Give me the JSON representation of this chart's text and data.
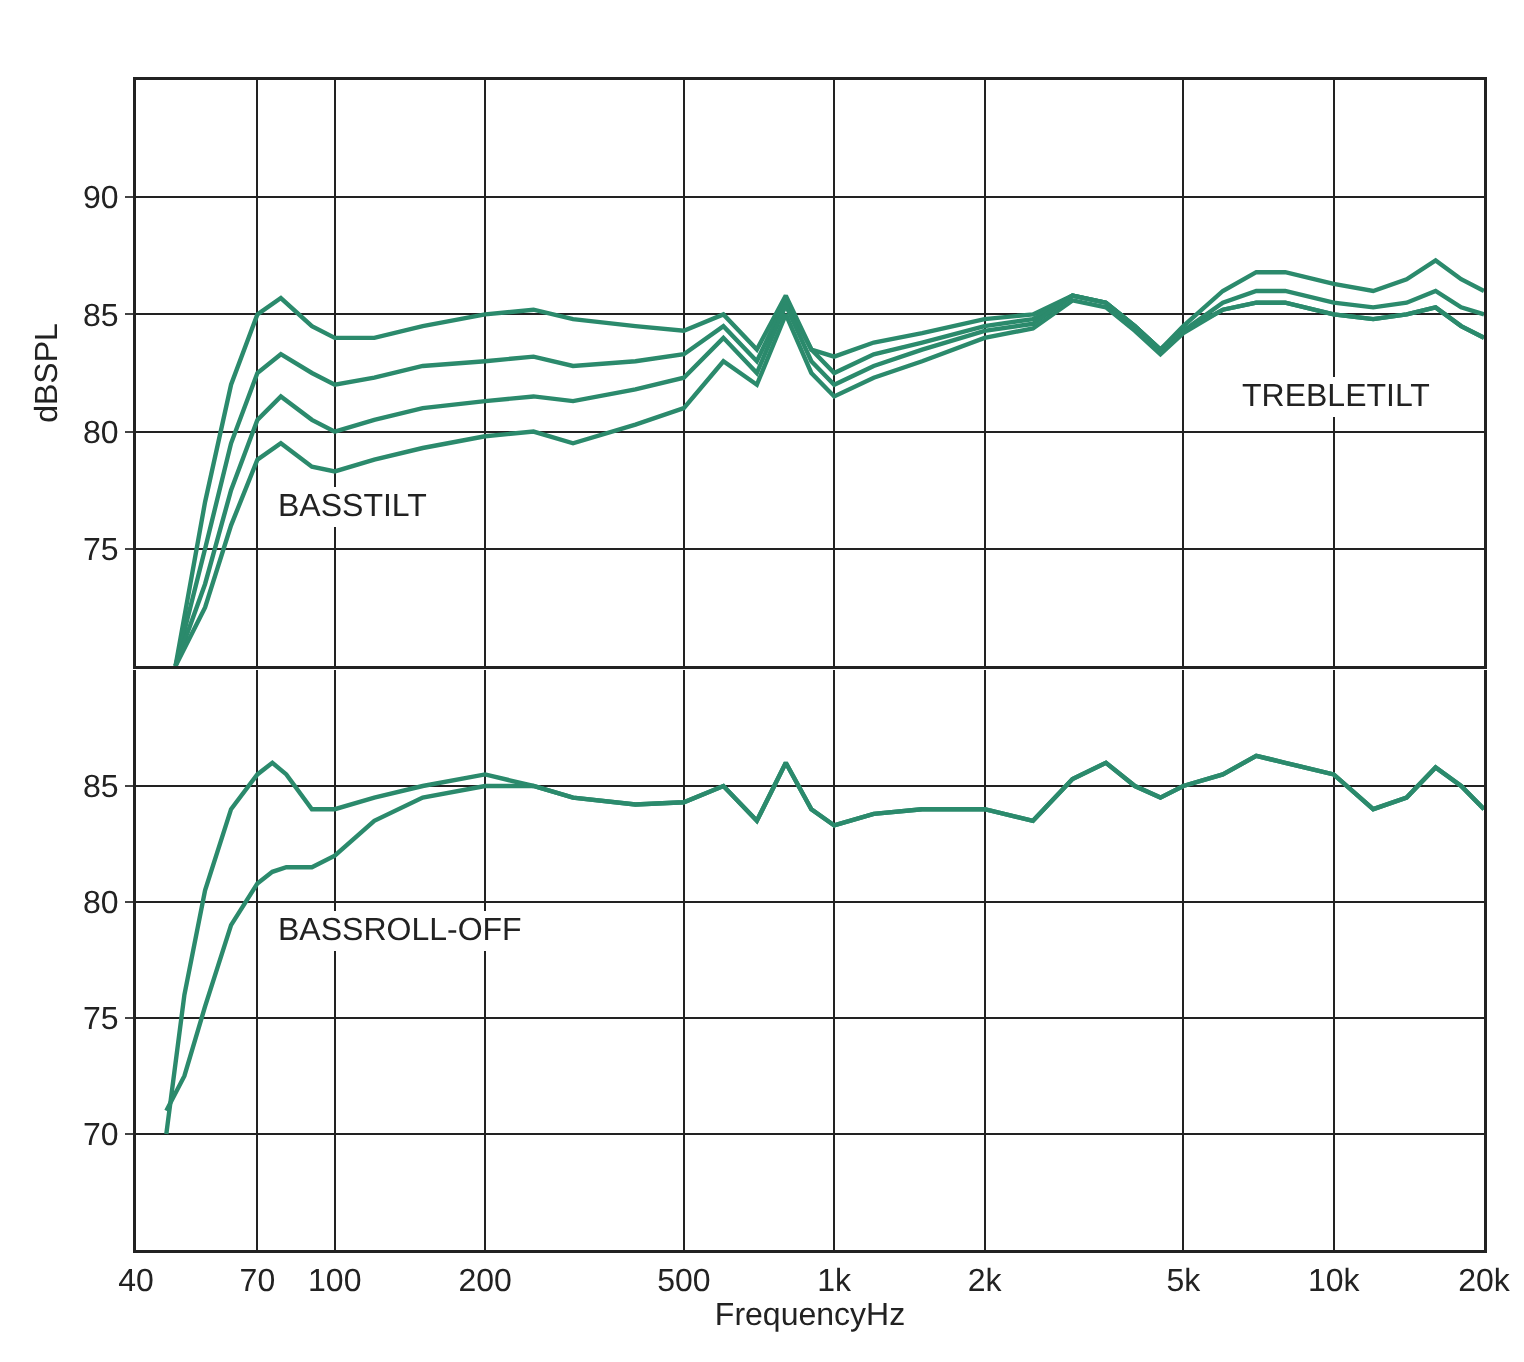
{
  "chart_data": [
    {
      "type": "line",
      "ylabel": "dBSPL",
      "log": "x",
      "grid": true,
      "tick_labels": "y",
      "x": [
        48,
        55,
        62,
        70,
        78,
        90,
        100,
        120,
        150,
        200,
        250,
        300,
        400,
        500,
        600,
        700,
        800,
        900,
        1000,
        1200,
        1500,
        2000,
        2500,
        3000,
        3500,
        4000,
        4500,
        5000,
        6000,
        7000,
        8000,
        10000,
        12000,
        14000,
        16000,
        18000,
        20000
      ],
      "xlim": [
        40,
        20000
      ],
      "xticks": [
        {
          "value": 40,
          "label": null
        },
        {
          "value": 70,
          "label": null
        },
        {
          "value": 100,
          "label": null
        },
        {
          "value": 200,
          "label": null
        },
        {
          "value": 500,
          "label": null
        },
        {
          "value": 1000,
          "label": null
        },
        {
          "value": 2000,
          "label": null
        },
        {
          "value": 5000,
          "label": null
        },
        {
          "value": 10000,
          "label": null
        },
        {
          "value": 20000,
          "label": null
        }
      ],
      "ylim": [
        70,
        95
      ],
      "yticks": [
        75,
        80,
        85,
        90
      ],
      "series": [
        {
          "color": "#2b8a6c",
          "values": [
            70,
            77,
            82,
            85,
            85.7,
            84.5,
            84,
            84,
            84.5,
            85,
            85.2,
            84.8,
            84.5,
            84.3,
            85,
            83.5,
            85.8,
            83.5,
            83.2,
            83.8,
            84.2,
            84.8,
            85,
            85.8,
            85.5,
            84.5,
            83.5,
            84.5,
            86,
            86.8,
            86.8,
            86.3,
            86,
            86.5,
            87.3,
            86.5,
            86
          ]
        },
        {
          "color": "#2b8a6c",
          "values": [
            70,
            75,
            79.5,
            82.5,
            83.3,
            82.5,
            82,
            82.3,
            82.8,
            83,
            83.2,
            82.8,
            83,
            83.3,
            84.5,
            83,
            85.6,
            83.5,
            82.5,
            83.3,
            83.8,
            84.5,
            84.8,
            85.8,
            85.5,
            84.5,
            83.5,
            84.3,
            85.5,
            86,
            86,
            85.5,
            85.3,
            85.5,
            86,
            85.3,
            85
          ]
        },
        {
          "color": "#2b8a6c",
          "values": [
            70,
            73.5,
            77.5,
            80.5,
            81.5,
            80.5,
            80,
            80.5,
            81,
            81.3,
            81.5,
            81.3,
            81.8,
            82.3,
            84,
            82.5,
            85.4,
            83,
            82,
            82.8,
            83.5,
            84.3,
            84.6,
            85.8,
            85.5,
            84.5,
            83.5,
            84.3,
            85.2,
            85.5,
            85.5,
            85,
            84.8,
            85,
            85.3,
            84.5,
            84
          ]
        },
        {
          "color": "#2b8a6c",
          "values": [
            70,
            72.5,
            76,
            78.8,
            79.5,
            78.5,
            78.3,
            78.8,
            79.3,
            79.8,
            80,
            79.5,
            80.3,
            81,
            83,
            82,
            85,
            82.5,
            81.5,
            82.3,
            83,
            84,
            84.4,
            85.6,
            85.3,
            84.3,
            83.3,
            84.2,
            85.2,
            85.5,
            85.5,
            85,
            84.8,
            85,
            85.3,
            84.5,
            84
          ]
        }
      ],
      "annotations": [
        "BASSTILT",
        "TREBLETILT"
      ]
    },
    {
      "type": "line",
      "xlabel": "FrequencyHz",
      "log": "x",
      "grid": true,
      "x": [
        46,
        50,
        55,
        62,
        70,
        75,
        80,
        90,
        100,
        120,
        150,
        200,
        250,
        300,
        400,
        500,
        600,
        700,
        800,
        900,
        1000,
        1200,
        1500,
        2000,
        2500,
        3000,
        3500,
        4000,
        4500,
        5000,
        6000,
        7000,
        8000,
        10000,
        12000,
        14000,
        16000,
        18000,
        20000
      ],
      "xlim": [
        40,
        20000
      ],
      "xticks": [
        40,
        70,
        100,
        200,
        500,
        {
          "value": 1000,
          "label": "1k"
        },
        {
          "value": 2000,
          "label": "2k"
        },
        {
          "value": 5000,
          "label": "5k"
        },
        {
          "value": 10000,
          "label": "10k"
        },
        {
          "value": 20000,
          "label": "20k"
        }
      ],
      "ylim": [
        65,
        90
      ],
      "yticks": [
        70,
        75,
        80,
        85
      ],
      "series": [
        {
          "color": "#2b8a6c",
          "values": [
            70,
            76,
            80.5,
            84,
            85.5,
            86,
            85.5,
            84,
            84,
            84.5,
            85,
            85.5,
            85,
            84.5,
            84.2,
            84.3,
            85,
            83.5,
            86,
            84,
            83.3,
            83.8,
            84,
            84,
            83.5,
            85.3,
            86,
            85,
            84.5,
            85,
            85.5,
            86.3,
            86,
            85.5,
            84,
            84.5,
            85.8,
            85,
            84
          ]
        },
        {
          "color": "#2b8a6c",
          "values": [
            71,
            72.5,
            75.5,
            79,
            80.8,
            81.3,
            81.5,
            81.5,
            82,
            83.5,
            84.5,
            85,
            85,
            84.5,
            84.2,
            84.3,
            85,
            83.5,
            86,
            84,
            83.3,
            83.8,
            84,
            84,
            83.5,
            85.3,
            86,
            85,
            84.5,
            85,
            85.5,
            86.3,
            86,
            85.5,
            84,
            84.5,
            85.8,
            85,
            84
          ]
        }
      ],
      "annotations": [
        "BASSROLL-OFF"
      ]
    }
  ]
}
